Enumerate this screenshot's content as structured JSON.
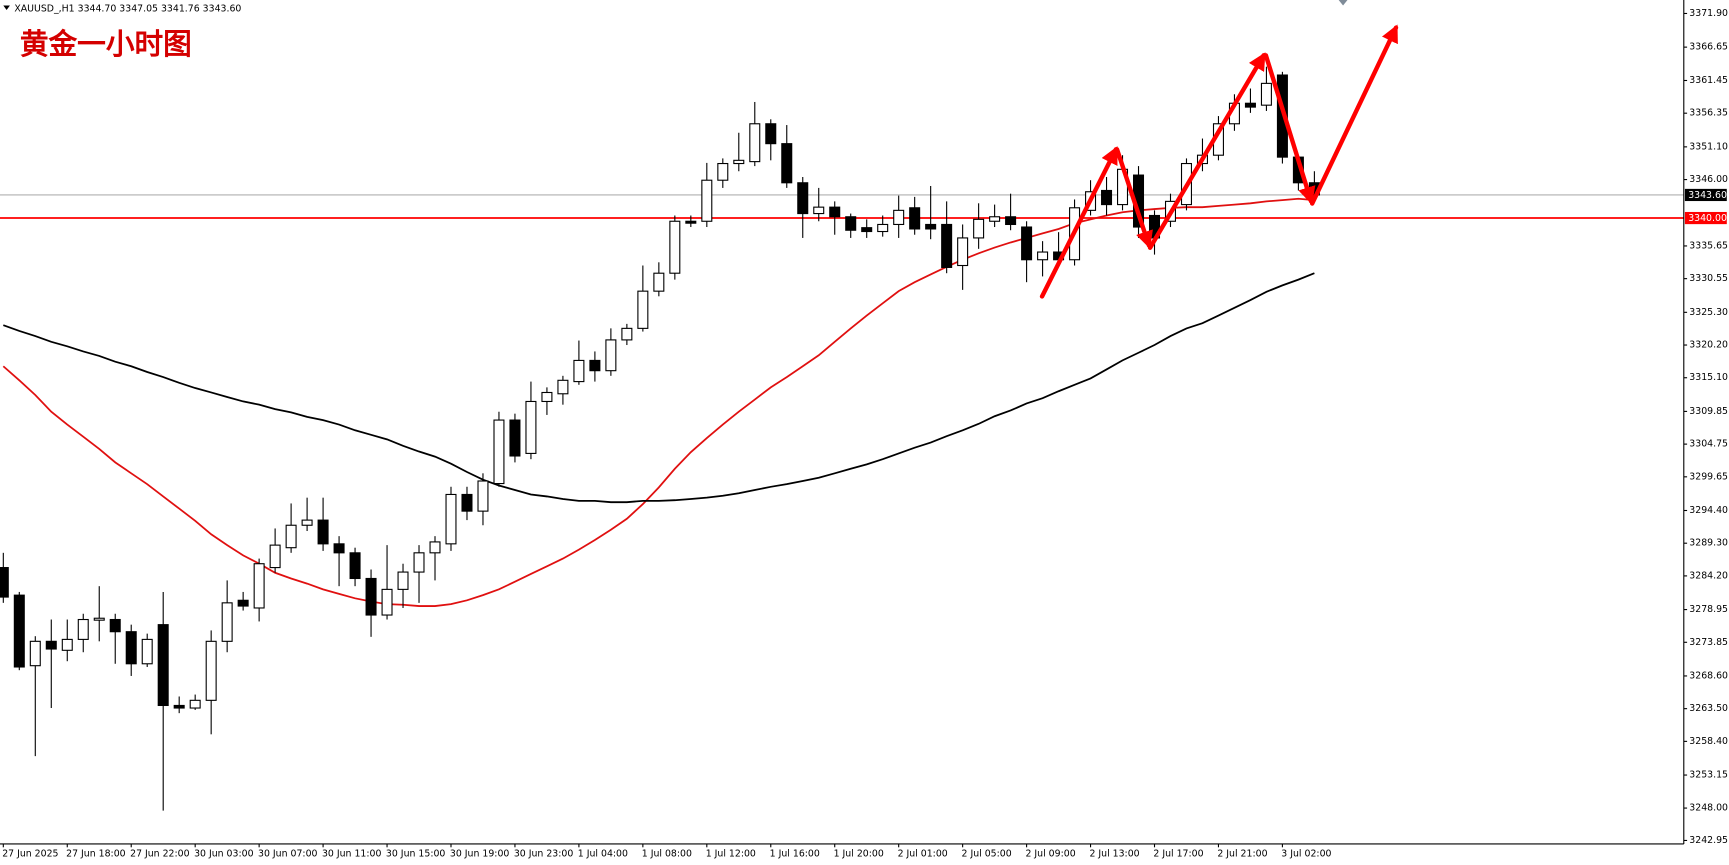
{
  "chart_data": {
    "type": "candlestick",
    "header": "XAUUSD_,H1  3344.70 3347.05 3341.76 3343.60",
    "title": "黄金一小时图",
    "categories": [
      "27 Jun 2025",
      null,
      null,
      null,
      "27 Jun 18:00",
      null,
      null,
      null,
      "27 Jun 22:00",
      null,
      null,
      null,
      "30 Jun 03:00",
      null,
      null,
      null,
      "30 Jun 07:00",
      null,
      null,
      null,
      "30 Jun 11:00",
      null,
      null,
      null,
      "30 Jun 15:00",
      null,
      null,
      null,
      "30 Jun 19:00",
      null,
      null,
      null,
      "30 Jun 23:00",
      null,
      null,
      null,
      "1 Jul 04:00",
      null,
      null,
      null,
      "1 Jul 08:00",
      null,
      null,
      null,
      "1 Jul 12:00",
      null,
      null,
      null,
      "1 Jul 16:00",
      null,
      null,
      null,
      "1 Jul 20:00",
      null,
      null,
      null,
      "2 Jul 01:00",
      null,
      null,
      null,
      "2 Jul 05:00",
      null,
      null,
      null,
      "2 Jul 09:00",
      null,
      null,
      null,
      "2 Jul 13:00",
      null,
      null,
      null,
      "2 Jul 17:00",
      null,
      null,
      null,
      "2 Jul 21:00",
      null,
      null,
      null,
      "3 Jul 02:00",
      null,
      null
    ],
    "open": [
      3285.5,
      3281.2,
      3270.2,
      3274.0,
      3272.6,
      3274.3,
      3277.3,
      3277.4,
      3275.5,
      3270.5,
      3276.6,
      3264.0,
      3263.6,
      3264.8,
      3274.0,
      3280.4,
      3279.2,
      3285.5,
      3288.6,
      3292.1,
      3292.9,
      3289.2,
      3287.8,
      3283.8,
      3278.1,
      3282.1,
      3284.8,
      3287.8,
      3289.2,
      3296.9,
      3294.3,
      3298.6,
      3308.5,
      3303.3,
      3311.4,
      3312.6,
      3314.5,
      3317.8,
      3316.2,
      3321.0,
      3322.8,
      3328.6,
      3331.4,
      3339.5,
      3339.5,
      3345.9,
      3348.5,
      3348.8,
      3354.7,
      3351.6,
      3345.5,
      3340.7,
      3341.7,
      3340.2,
      3338.5,
      3337.9,
      3339.0,
      3341.6,
      3339.0,
      3339.0,
      3332.6,
      3336.9,
      3339.5,
      3340.2,
      3338.6,
      3333.5,
      3334.7,
      3333.5,
      3341.2,
      3344.3,
      3342.1,
      3346.7,
      3340.4,
      3339.5,
      3342.1,
      3348.5,
      3349.8,
      3354.7,
      3357.9,
      3357.6,
      3362.3,
      3349.5,
      3345.5
    ],
    "high": [
      3287.8,
      3281.7,
      3274.8,
      3277.4,
      3277.4,
      3278.3,
      3282.6,
      3278.3,
      3276.6,
      3275.2,
      3281.7,
      3265.4,
      3265.7,
      3275.7,
      3283.5,
      3281.7,
      3286.9,
      3291.6,
      3295.5,
      3296.4,
      3296.4,
      3290.4,
      3288.6,
      3285.2,
      3289.0,
      3286.1,
      3289.0,
      3290.4,
      3298.1,
      3298.1,
      3300.2,
      3309.8,
      3309.5,
      3314.5,
      3313.6,
      3315.4,
      3320.9,
      3319.2,
      3322.8,
      3323.5,
      3332.6,
      3333.1,
      3340.4,
      3340.4,
      3348.6,
      3349.3,
      3353.3,
      3358.1,
      3355.4,
      3354.5,
      3346.4,
      3344.7,
      3342.6,
      3340.7,
      3339.8,
      3340.4,
      3343.5,
      3343.3,
      3345.0,
      3342.6,
      3339.0,
      3342.3,
      3342.1,
      3343.8,
      3339.5,
      3336.4,
      3337.8,
      3342.9,
      3345.9,
      3346.4,
      3349.8,
      3348.1,
      3341.2,
      3343.8,
      3349.3,
      3352.4,
      3355.9,
      3359.3,
      3360.2,
      3363.6,
      3362.8,
      3349.8,
      3347.3
    ],
    "low": [
      3280.0,
      3269.5,
      3256.1,
      3263.6,
      3270.9,
      3272.3,
      3274.0,
      3270.5,
      3268.6,
      3270.0,
      3247.6,
      3262.8,
      3263.3,
      3259.5,
      3272.3,
      3278.8,
      3277.1,
      3284.7,
      3287.8,
      3291.2,
      3288.1,
      3282.6,
      3282.6,
      3274.7,
      3277.4,
      3279.2,
      3280.0,
      3283.5,
      3288.1,
      3292.9,
      3292.1,
      3298.1,
      3301.9,
      3302.4,
      3309.3,
      3310.9,
      3314.0,
      3314.5,
      3315.4,
      3320.2,
      3322.3,
      3327.8,
      3330.4,
      3338.6,
      3338.6,
      3344.7,
      3347.3,
      3348.1,
      3349.0,
      3344.7,
      3336.9,
      3339.5,
      3337.4,
      3336.9,
      3336.9,
      3337.1,
      3336.9,
      3337.4,
      3336.7,
      3331.4,
      3328.8,
      3335.2,
      3338.6,
      3338.1,
      3330.0,
      3330.9,
      3332.6,
      3332.6,
      3340.4,
      3340.4,
      3341.2,
      3336.9,
      3334.3,
      3338.6,
      3341.2,
      3347.3,
      3349.0,
      3353.6,
      3356.4,
      3356.7,
      3348.5,
      3344.3,
      3342.9
    ],
    "close": [
      3280.9,
      3270.0,
      3274.0,
      3272.8,
      3274.3,
      3277.4,
      3277.6,
      3275.5,
      3270.5,
      3274.3,
      3264.0,
      3263.6,
      3264.8,
      3274.0,
      3280.0,
      3279.5,
      3286.1,
      3289.0,
      3292.1,
      3292.9,
      3289.2,
      3287.8,
      3283.8,
      3278.1,
      3282.1,
      3284.8,
      3287.8,
      3289.5,
      3296.9,
      3294.3,
      3299.0,
      3308.5,
      3302.9,
      3311.4,
      3312.8,
      3314.7,
      3317.8,
      3316.2,
      3321.0,
      3322.8,
      3328.6,
      3331.4,
      3339.5,
      3339.2,
      3345.9,
      3348.5,
      3349.0,
      3354.7,
      3351.6,
      3345.5,
      3340.7,
      3341.7,
      3340.2,
      3338.1,
      3337.9,
      3339.0,
      3341.2,
      3338.3,
      3338.3,
      3332.3,
      3336.9,
      3339.8,
      3340.2,
      3339.0,
      3333.5,
      3334.7,
      3333.5,
      3341.6,
      3344.1,
      3342.1,
      3347.6,
      3338.6,
      3336.9,
      3342.6,
      3348.5,
      3349.8,
      3354.7,
      3357.9,
      3357.3,
      3361.0,
      3349.5,
      3345.5,
      3343.6
    ],
    "up_color": "#ffffff",
    "down_color": "#000000",
    "moving_averages": [
      {
        "color": "#e01010",
        "values": [
          3316.9,
          3314.7,
          3312.4,
          3309.8,
          3307.8,
          3305.9,
          3304.0,
          3301.9,
          3300.2,
          3298.5,
          3296.6,
          3294.7,
          3292.8,
          3290.7,
          3289.0,
          3287.4,
          3286.1,
          3284.7,
          3283.8,
          3283.0,
          3282.1,
          3281.4,
          3280.7,
          3280.2,
          3279.8,
          3279.7,
          3279.5,
          3279.5,
          3279.8,
          3280.4,
          3281.2,
          3282.1,
          3283.3,
          3284.5,
          3285.7,
          3286.9,
          3288.3,
          3289.8,
          3291.4,
          3293.1,
          3295.4,
          3298.0,
          3300.9,
          3303.5,
          3305.7,
          3307.8,
          3309.8,
          3311.7,
          3313.6,
          3315.2,
          3316.9,
          3318.6,
          3320.7,
          3322.8,
          3324.8,
          3326.7,
          3328.6,
          3330.0,
          3331.2,
          3332.4,
          3333.5,
          3334.5,
          3335.4,
          3336.2,
          3336.9,
          3337.6,
          3338.3,
          3339.2,
          3339.8,
          3340.4,
          3340.9,
          3341.2,
          3341.4,
          3341.6,
          3341.7,
          3341.7,
          3341.9,
          3342.1,
          3342.3,
          3342.6,
          3342.8,
          3343.0,
          3342.8
        ]
      },
      {
        "color": "#000000",
        "values": [
          3323.3,
          3322.4,
          3321.6,
          3320.7,
          3320.0,
          3319.2,
          3318.5,
          3317.6,
          3316.9,
          3316.0,
          3315.2,
          3314.3,
          3313.5,
          3312.8,
          3312.1,
          3311.4,
          3310.9,
          3310.2,
          3309.7,
          3309.0,
          3308.5,
          3307.8,
          3306.9,
          3306.2,
          3305.5,
          3304.5,
          3303.6,
          3302.8,
          3301.7,
          3300.4,
          3299.2,
          3298.3,
          3297.6,
          3296.9,
          3296.6,
          3296.2,
          3295.9,
          3295.9,
          3295.7,
          3295.7,
          3295.9,
          3295.9,
          3296.0,
          3296.2,
          3296.4,
          3296.7,
          3297.1,
          3297.6,
          3298.1,
          3298.5,
          3299.0,
          3299.5,
          3300.2,
          3300.9,
          3301.6,
          3302.4,
          3303.3,
          3304.2,
          3305.0,
          3306.0,
          3306.9,
          3307.9,
          3309.1,
          3310.0,
          3311.1,
          3311.9,
          3313.0,
          3314.0,
          3315.0,
          3316.4,
          3317.8,
          3319.0,
          3320.2,
          3321.6,
          3322.8,
          3323.6,
          3324.8,
          3326.0,
          3327.2,
          3328.5,
          3329.5,
          3330.4,
          3331.4
        ]
      }
    ],
    "hlines": [
      {
        "value": 3343.6,
        "label": "3343.60",
        "color": "#9a9a9a",
        "label_color": "#000000"
      },
      {
        "value": 3340,
        "label": "3340.00",
        "color": "#ff0000",
        "label_color": "#ff0000"
      }
    ],
    "ylim": [
      3242.4,
      3374.0
    ],
    "yticks": [
      {
        "value": 3371.9,
        "label": "3371.90"
      },
      3366.65,
      3361.45,
      3356.35,
      {
        "value": 3351.1,
        "label": "3351.10"
      },
      {
        "value": 3346,
        "label": "3346.00"
      },
      3335.65,
      3330.55,
      {
        "value": 3325.3,
        "label": "3325.30"
      },
      {
        "value": 3320.2,
        "label": "3320.20"
      },
      {
        "value": 3315.1,
        "label": "3315.10"
      },
      3309.85,
      3304.75,
      3299.65,
      {
        "value": 3294.4,
        "label": "3294.40"
      },
      {
        "value": 3289.3,
        "label": "3289.30"
      },
      {
        "value": 3284.2,
        "label": "3284.20"
      },
      3278.95,
      3273.85,
      {
        "value": 3268.6,
        "label": "3268.60"
      },
      {
        "value": 3263.5,
        "label": "3263.50"
      },
      {
        "value": 3258.4,
        "label": "3258.40"
      },
      3253.15,
      {
        "value": 3248,
        "label": "3248.00"
      },
      3242.95
    ]
  }
}
